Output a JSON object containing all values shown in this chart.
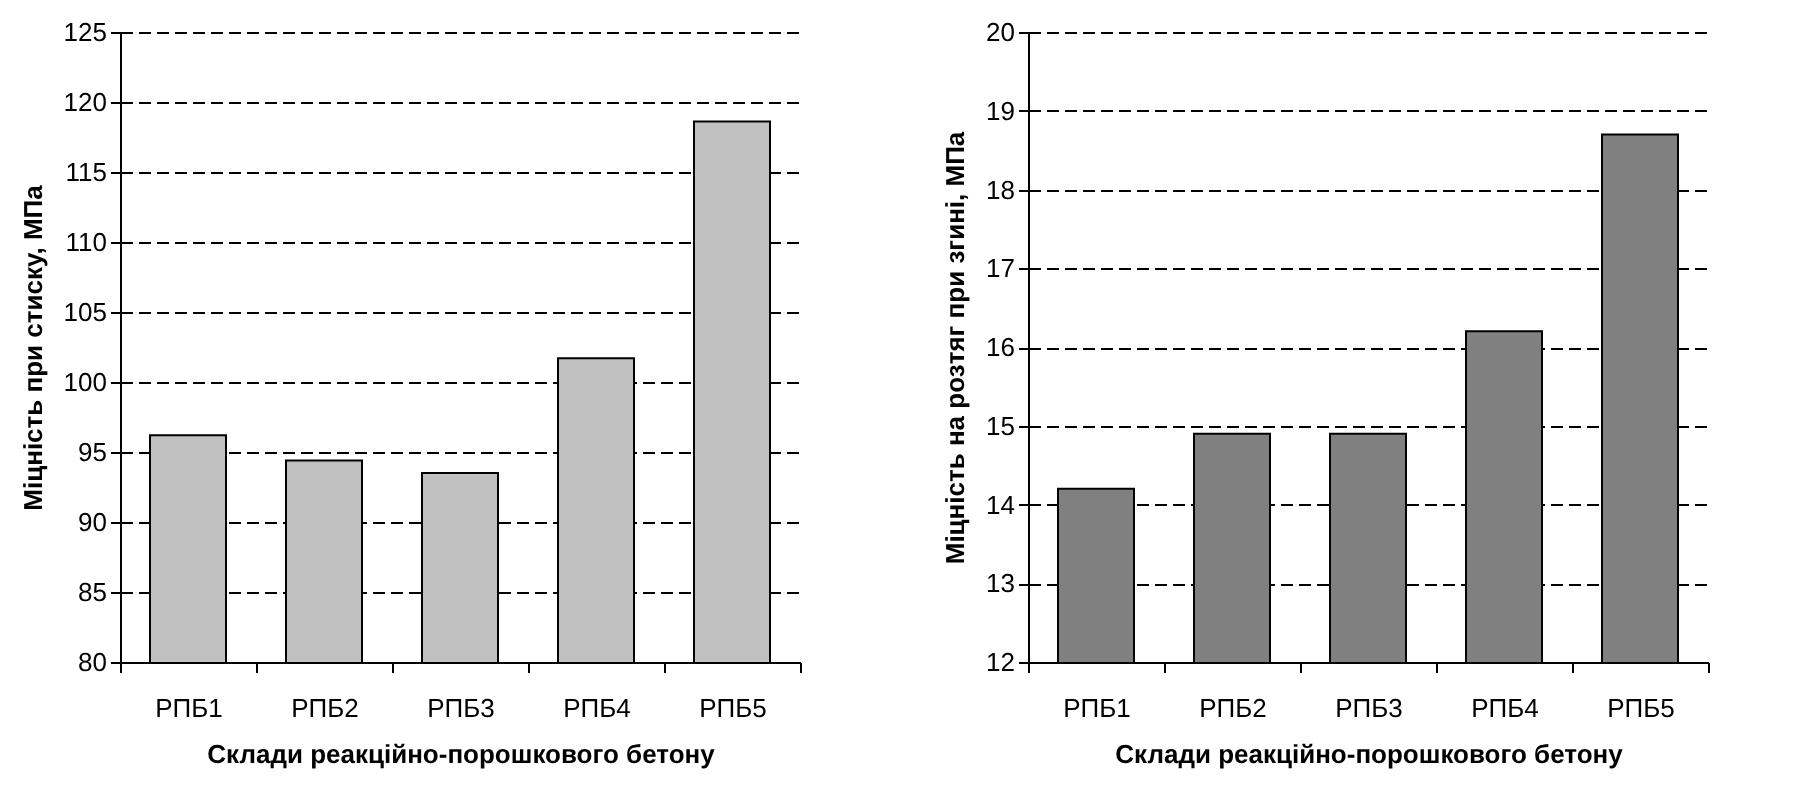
{
  "chart_data": [
    {
      "type": "bar",
      "xlabel": "Склади реакційно-порошкового бетону",
      "ylabel": "Міцність при стиску, МПа",
      "categories": [
        "РПБ1",
        "РПБ2",
        "РПБ3",
        "РПБ4",
        "РПБ5"
      ],
      "values": [
        96.2,
        94.4,
        93.5,
        101.7,
        118.6
      ],
      "color": "#c0c0c0",
      "ylim": [
        80,
        125
      ],
      "yticks": [
        80,
        85,
        90,
        95,
        100,
        105,
        110,
        115,
        120,
        125
      ],
      "grid": "y"
    },
    {
      "type": "bar",
      "xlabel": "Склади реакційно-порошкового бетону",
      "ylabel": "Міцність на розтяг при згині, МПа",
      "categories": [
        "РПБ1",
        "РПБ2",
        "РПБ3",
        "РПБ4",
        "РПБ5"
      ],
      "values": [
        14.2,
        14.9,
        14.9,
        16.2,
        18.7
      ],
      "color": "#808080",
      "ylim": [
        12,
        20
      ],
      "yticks": [
        12,
        13,
        14,
        15,
        16,
        17,
        18,
        19,
        20
      ],
      "grid": "y"
    }
  ]
}
